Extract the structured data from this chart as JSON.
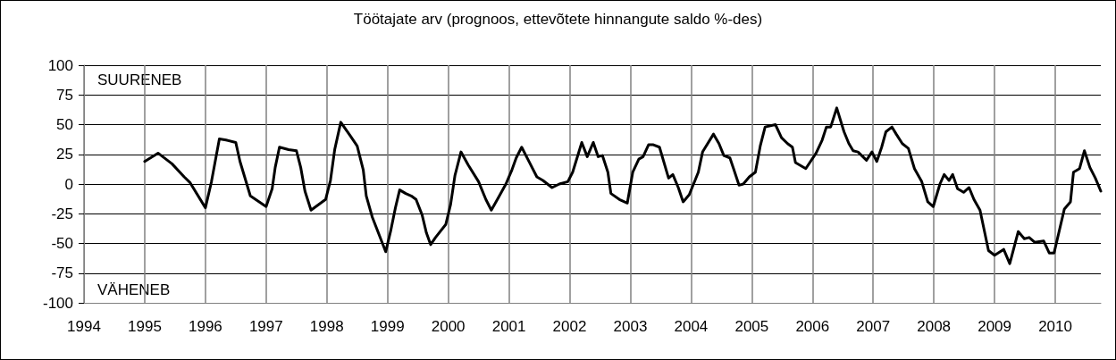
{
  "chart_data": {
    "type": "line",
    "title": "Töötajate arv (prognoos, ettevõtete hinnangute saldo %-des)",
    "annotations": [
      "SUURENEB",
      "VÄHENEB"
    ],
    "x": [
      1995.0,
      1995.22,
      1995.45,
      1995.65,
      1995.75,
      1996.0,
      1996.1,
      1996.23,
      1996.34,
      1996.5,
      1996.57,
      1996.74,
      1997.0,
      1997.1,
      1997.15,
      1997.22,
      1997.37,
      1997.5,
      1997.57,
      1997.64,
      1997.74,
      1997.98,
      1998.06,
      1998.13,
      1998.23,
      1998.38,
      1998.5,
      1998.6,
      1998.65,
      1998.75,
      1998.97,
      1999.05,
      1999.13,
      1999.2,
      1999.3,
      1999.39,
      1999.47,
      1999.57,
      1999.64,
      1999.71,
      1999.79,
      1999.96,
      2000.04,
      2000.11,
      2000.21,
      2000.33,
      2000.5,
      2000.62,
      2000.71,
      2000.82,
      2000.95,
      2001.05,
      2001.12,
      2001.21,
      2001.32,
      2001.46,
      2001.56,
      2001.71,
      2001.83,
      2001.97,
      2002.05,
      2002.2,
      2002.29,
      2002.39,
      2002.47,
      2002.54,
      2002.63,
      2002.68,
      2002.82,
      2002.95,
      2003.04,
      2003.14,
      2003.21,
      2003.3,
      2003.38,
      2003.48,
      2003.63,
      2003.7,
      2003.79,
      2003.87,
      2003.97,
      2004.12,
      2004.19,
      2004.37,
      2004.46,
      2004.54,
      2004.64,
      2004.7,
      2004.79,
      2004.86,
      2004.96,
      2005.06,
      2005.14,
      2005.22,
      2005.39,
      2005.49,
      2005.59,
      2005.67,
      2005.72,
      2005.89,
      2006.06,
      2006.16,
      2006.23,
      2006.3,
      2006.4,
      2006.52,
      2006.6,
      2006.67,
      2006.75,
      2006.89,
      2006.98,
      2007.06,
      2007.14,
      2007.21,
      2007.31,
      2007.38,
      2007.48,
      2007.58,
      2007.68,
      2007.8,
      2007.9,
      2007.99,
      2008.1,
      2008.17,
      2008.25,
      2008.31,
      2008.39,
      2008.49,
      2008.58,
      2008.66,
      2008.76,
      2008.9,
      2009.0,
      2009.15,
      2009.25,
      2009.39,
      2009.49,
      2009.57,
      2009.66,
      2009.81,
      2009.9,
      2009.98,
      2010.15,
      2010.25,
      2010.3,
      2010.4,
      2010.48,
      2010.57,
      2010.66,
      2010.75
    ],
    "series": [
      {
        "color": "#000000",
        "values": [
          19,
          26,
          17,
          6,
          1,
          -20,
          2,
          38,
          37,
          35,
          19,
          -10,
          -19,
          -4,
          14,
          31,
          29,
          28,
          14,
          -6,
          -22,
          -13,
          3,
          29,
          52,
          41,
          32,
          12,
          -10,
          -28,
          -57,
          -40,
          -20,
          -5,
          -8,
          -10,
          -13,
          -26,
          -41,
          -51,
          -45,
          -34,
          -17,
          7,
          27,
          16,
          2,
          -13,
          -22,
          -12,
          0,
          12,
          22,
          31,
          20,
          6,
          3,
          -3,
          0,
          2,
          10,
          35,
          23,
          35,
          23,
          24,
          10,
          -8,
          -13,
          -16,
          10,
          21,
          23,
          33,
          33,
          31,
          5,
          8,
          -3,
          -15,
          -9,
          10,
          27,
          42,
          34,
          24,
          22,
          13,
          -1,
          0,
          6,
          10,
          32,
          48,
          50,
          39,
          34,
          31,
          18,
          13,
          26,
          37,
          48,
          48,
          64,
          44,
          34,
          28,
          27,
          20,
          27,
          19,
          31,
          44,
          48,
          42,
          34,
          30,
          13,
          2,
          -15,
          -19,
          0,
          8,
          3,
          8,
          -4,
          -7,
          -3,
          -13,
          -22,
          -56,
          -60,
          -55,
          -67,
          -40,
          -46,
          -45,
          -49,
          -48,
          -58,
          -58,
          -21,
          -15,
          10,
          13,
          28,
          14,
          5,
          -6
        ]
      }
    ],
    "xlim": [
      1994,
      2010.75
    ],
    "xticks": [
      1994,
      1995,
      1996,
      1997,
      1998,
      1999,
      2000,
      2001,
      2002,
      2003,
      2004,
      2005,
      2006,
      2007,
      2008,
      2009,
      2010
    ],
    "ylim": [
      -100,
      100
    ],
    "yticks": [
      -100,
      -75,
      -50,
      -25,
      0,
      25,
      50,
      75,
      100
    ],
    "grid": true,
    "marker": "none",
    "line_style": "solid"
  }
}
